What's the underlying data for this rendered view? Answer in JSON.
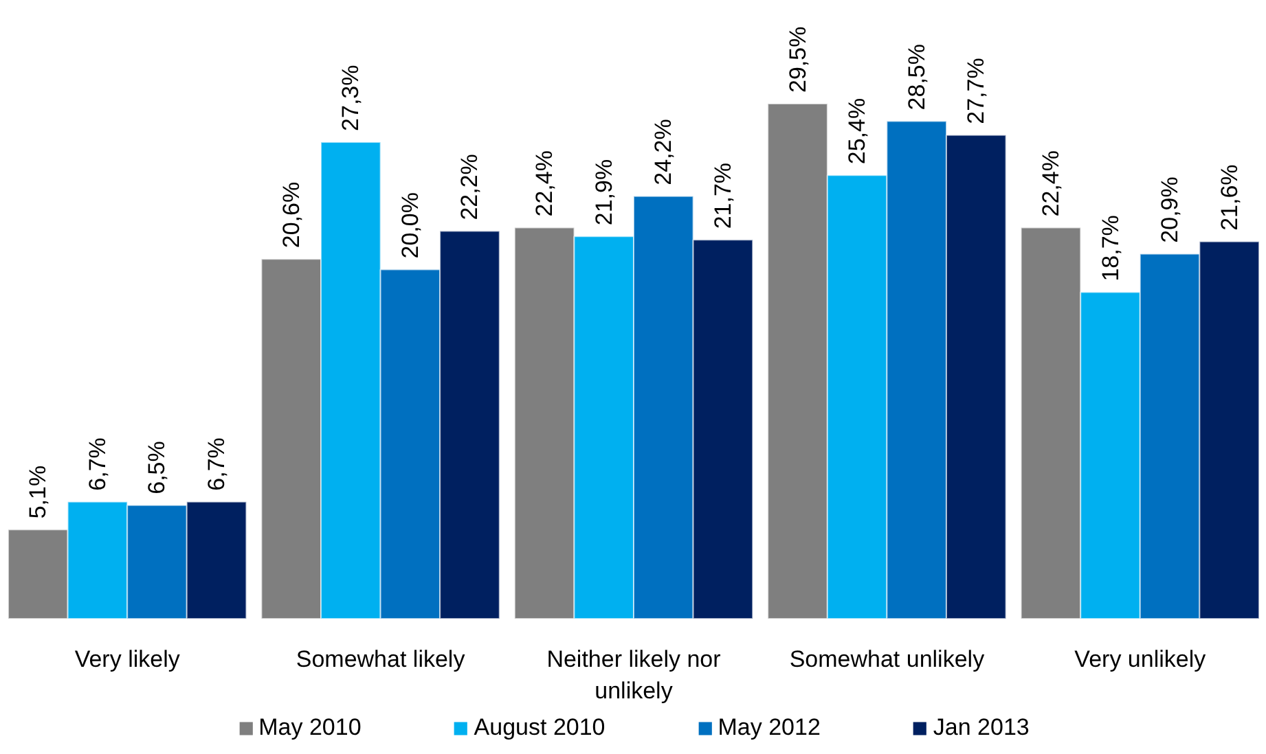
{
  "chart_data": {
    "type": "bar",
    "categories": [
      "Very likely",
      "Somewhat likely",
      "Neither likely nor unlikely",
      "Somewhat unlikely",
      "Very unlikely"
    ],
    "series": [
      {
        "name": "May 2010",
        "color": "#7f7f7f",
        "values": [
          5.1,
          20.6,
          22.4,
          29.5,
          22.4
        ],
        "value_labels": [
          "5,1%",
          "20,6%",
          "22,4%",
          "29,5%",
          "22,4%"
        ]
      },
      {
        "name": "August 2010",
        "color": "#00b0f0",
        "values": [
          6.7,
          27.3,
          21.9,
          25.4,
          18.7
        ],
        "value_labels": [
          "6,7%",
          "27,3%",
          "21,9%",
          "25,4%",
          "18,7%"
        ]
      },
      {
        "name": "May 2012",
        "color": "#0070c0",
        "values": [
          6.5,
          20.0,
          24.2,
          28.5,
          20.9
        ],
        "value_labels": [
          "6,5%",
          "20,0%",
          "24,2%",
          "28,5%",
          "20,9%"
        ]
      },
      {
        "name": "Jan 2013",
        "color": "#002060",
        "values": [
          6.7,
          22.2,
          21.7,
          27.7,
          21.6
        ],
        "value_labels": [
          "6,7%",
          "22,2%",
          "21,7%",
          "27,7%",
          "21,6%"
        ]
      }
    ],
    "legend": "bottom"
  }
}
